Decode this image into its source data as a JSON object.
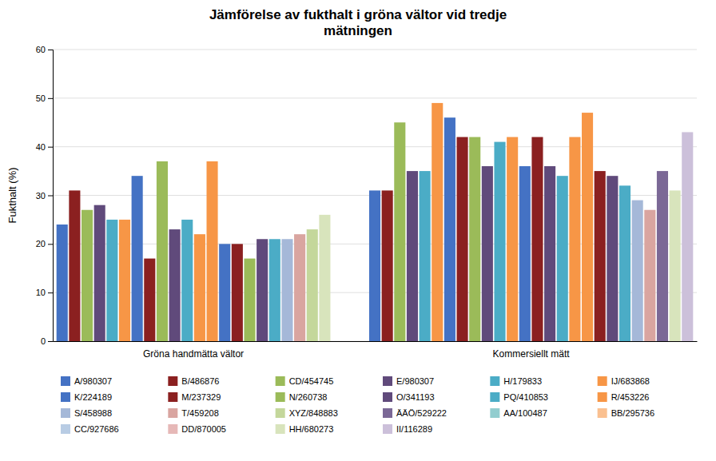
{
  "chart_data": {
    "type": "bar",
    "title": "Jämförelse av fukthalt i gröna vältor vid tredje\nmätningen",
    "ylabel": "Fukthalt (%)",
    "categories": [
      "Gröna handmätta vältor",
      "Kommersiellt mätt"
    ],
    "series": [
      {
        "name": "A/980307",
        "color": "#4472C4"
      },
      {
        "name": "B/486876",
        "color": "#8B2020"
      },
      {
        "name": "CD/454745",
        "color": "#9BBB59"
      },
      {
        "name": "E/980307",
        "color": "#604A7B"
      },
      {
        "name": "H/179833",
        "color": "#4BACC6"
      },
      {
        "name": "IJ/683868",
        "color": "#F79646"
      },
      {
        "name": "K/224189",
        "color": "#4472C4"
      },
      {
        "name": "M/237329",
        "color": "#8B2020"
      },
      {
        "name": "N/260738",
        "color": "#9BBB59"
      },
      {
        "name": "O/341193",
        "color": "#604A7B"
      },
      {
        "name": "PQ/410853",
        "color": "#4BACC6"
      },
      {
        "name": "R/453226",
        "color": "#F79646"
      },
      {
        "name": "S/458988",
        "color": "#A5B8D8"
      },
      {
        "name": "T/459208",
        "color": "#D9A5A0"
      },
      {
        "name": "XYZ/848883",
        "color": "#C4D79B"
      },
      {
        "name": "ÄÄÖ/529222",
        "color": "#7B6896"
      },
      {
        "name": "AA/100487",
        "color": "#92CDCF"
      },
      {
        "name": "BB/295736",
        "color": "#FAC090"
      },
      {
        "name": "CC/927686",
        "color": "#B8CCE4"
      },
      {
        "name": "DD/870005",
        "color": "#E6B8B7"
      },
      {
        "name": "HH/680273",
        "color": "#D8E4BC"
      },
      {
        "name": "II/116289",
        "color": "#CCC0DA"
      }
    ],
    "bars": [
      [
        [
          0,
          24
        ],
        [
          1,
          31
        ],
        [
          2,
          27
        ],
        [
          3,
          28
        ],
        [
          4,
          25
        ],
        [
          5,
          25
        ],
        [
          0,
          34
        ],
        [
          1,
          17
        ],
        [
          2,
          37
        ],
        [
          3,
          23
        ],
        [
          4,
          25
        ],
        [
          5,
          22
        ],
        [
          5,
          37
        ],
        [
          0,
          20
        ],
        [
          7,
          20
        ],
        [
          8,
          17
        ],
        [
          9,
          21
        ],
        [
          10,
          21
        ],
        [
          12,
          21
        ],
        [
          13,
          22
        ],
        [
          14,
          23
        ],
        [
          20,
          26
        ]
      ],
      [
        [
          0,
          31
        ],
        [
          1,
          31
        ],
        [
          2,
          45
        ],
        [
          3,
          35
        ],
        [
          4,
          35
        ],
        [
          5,
          49
        ],
        [
          6,
          46
        ],
        [
          7,
          42
        ],
        [
          8,
          42
        ],
        [
          9,
          36
        ],
        [
          10,
          41
        ],
        [
          11,
          42
        ],
        [
          0,
          36
        ],
        [
          7,
          42
        ],
        [
          9,
          36
        ],
        [
          10,
          34
        ],
        [
          11,
          42
        ],
        [
          5,
          47
        ],
        [
          7,
          35
        ],
        [
          9,
          34
        ],
        [
          10,
          32
        ],
        [
          12,
          29
        ],
        [
          13,
          27
        ],
        [
          15,
          35
        ],
        [
          20,
          31
        ],
        [
          21,
          43
        ]
      ]
    ],
    "ylim": [
      0,
      60
    ],
    "yticks": [
      0,
      10,
      20,
      30,
      40,
      50,
      60
    ],
    "grid": true,
    "legend": "bottom"
  }
}
